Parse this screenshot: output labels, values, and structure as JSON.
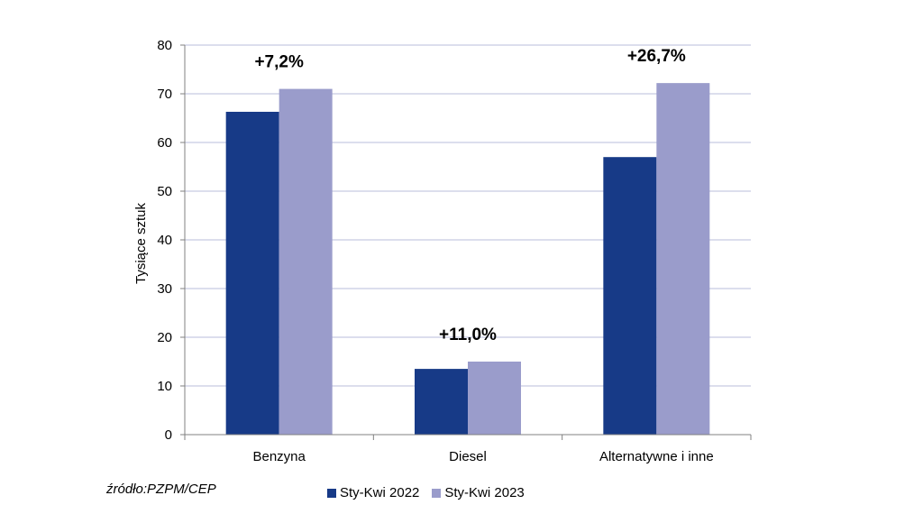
{
  "chart_data": {
    "type": "bar",
    "categories": [
      "Benzyna",
      "Diesel",
      "Alternatywne i inne"
    ],
    "series": [
      {
        "name": "Sty-Kwi 2022",
        "values": [
          66.3,
          13.5,
          57.0
        ],
        "color": "#173a87"
      },
      {
        "name": "Sty-Kwi 2023",
        "values": [
          71.0,
          15.0,
          72.2
        ],
        "color": "#9a9ccb"
      }
    ],
    "annotations": [
      "+7,2%",
      "+11,0%",
      "+26,7%"
    ],
    "ylabel": "Tysiące sztuk",
    "ylim": [
      0,
      80
    ],
    "yticks": [
      0,
      10,
      20,
      30,
      40,
      50,
      60,
      70,
      80
    ],
    "grid": true,
    "gridColor": "#c7cbe2",
    "legend_position": "bottom"
  },
  "source_text": "źródło:PZPM/CEP"
}
